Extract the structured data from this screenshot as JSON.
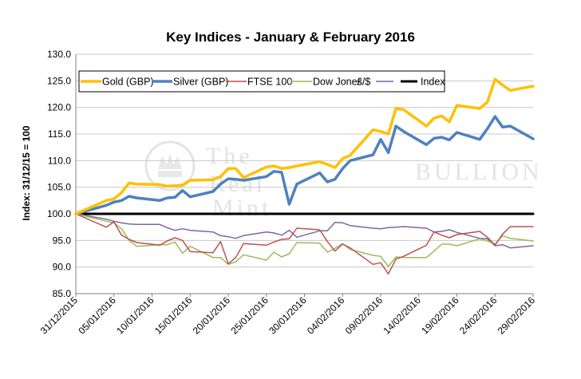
{
  "chart_data": {
    "type": "line",
    "title": "Key Indices - January & February 2016",
    "xlabel": "",
    "ylabel": "Index: 31/12/15 = 100",
    "ylim": [
      85,
      130
    ],
    "y_ticks": [
      "85.0",
      "90.0",
      "95.0",
      "100.0",
      "105.0",
      "110.0",
      "115.0",
      "120.0",
      "125.0",
      "130.0"
    ],
    "x_tick_labels": [
      "31/12/2015",
      "05/01/2016",
      "10/01/2016",
      "15/01/2016",
      "20/01/2016",
      "25/01/2016",
      "30/01/2016",
      "04/02/2016",
      "09/02/2016",
      "14/02/2016",
      "19/02/2016",
      "24/02/2016",
      "29/02/2016"
    ],
    "x_tick_days": [
      0,
      5,
      10,
      15,
      20,
      25,
      30,
      35,
      40,
      45,
      50,
      55,
      60
    ],
    "x_range_days": [
      0,
      60
    ],
    "grid": "horizontal",
    "legend_position": "top-left",
    "x": [
      0,
      4,
      5,
      6,
      7,
      8,
      11,
      12,
      13,
      14,
      15,
      18,
      19,
      20,
      21,
      22,
      25,
      26,
      27,
      28,
      29,
      32,
      33,
      34,
      35,
      36,
      39,
      40,
      41,
      42,
      43,
      46,
      47,
      48,
      49,
      50,
      53,
      54,
      55,
      56,
      57,
      60
    ],
    "series": [
      {
        "name": "Gold (GBP)",
        "color": "#FFC000",
        "values": [
          100,
          102.5,
          102.8,
          104.0,
          105.8,
          105.6,
          105.5,
          105.2,
          105.3,
          105.4,
          106.3,
          106.4,
          107.0,
          108.5,
          108.5,
          106.8,
          108.8,
          109.0,
          108.5,
          108.7,
          109.0,
          109.8,
          109.3,
          108.7,
          110.4,
          111.0,
          115.8,
          115.5,
          115.0,
          119.8,
          119.6,
          116.5,
          118.0,
          118.4,
          117.3,
          120.4,
          119.8,
          121.0,
          125.3,
          124.2,
          123.2,
          124.0
        ]
      },
      {
        "name": "Silver (GBP)",
        "color": "#4F81BD",
        "values": [
          100,
          101.6,
          102.2,
          102.5,
          103.3,
          103.0,
          102.5,
          103.0,
          103.1,
          104.4,
          103.2,
          104.2,
          105.6,
          106.6,
          106.5,
          106.3,
          107.0,
          108.0,
          107.8,
          101.8,
          105.6,
          107.7,
          106.0,
          106.5,
          108.5,
          110.0,
          111.1,
          114.0,
          111.5,
          116.5,
          115.5,
          113.0,
          114.2,
          114.4,
          113.9,
          115.3,
          114.0,
          116.0,
          118.3,
          116.3,
          116.5,
          114.1
        ]
      },
      {
        "name": "FTSE 100",
        "color": "#C0504D",
        "values": [
          100,
          97.5,
          98.5,
          96.0,
          95.2,
          94.6,
          94.1,
          94.9,
          95.5,
          95.0,
          92.9,
          92.7,
          94.8,
          90.6,
          91.8,
          94.4,
          94.1,
          94.7,
          95.2,
          95.3,
          97.3,
          97.0,
          94.8,
          93.0,
          94.3,
          93.6,
          90.5,
          90.8,
          88.7,
          91.5,
          92.0,
          94.1,
          96.6,
          96.0,
          95.5,
          96.1,
          96.7,
          95.6,
          94.1,
          96.2,
          97.6,
          97.6
        ]
      },
      {
        "name": "Dow Jones",
        "color": "#9BBB59",
        "values": [
          100,
          98.6,
          98.3,
          97.2,
          95.0,
          93.9,
          94.2,
          94.2,
          94.7,
          92.6,
          93.9,
          91.8,
          91.8,
          90.5,
          91.0,
          92.3,
          91.3,
          92.8,
          91.9,
          92.5,
          94.6,
          94.5,
          92.8,
          93.5,
          94.4,
          93.3,
          92.2,
          92.0,
          90.1,
          91.9,
          91.8,
          91.8,
          93.0,
          94.3,
          94.3,
          94.0,
          95.3,
          94.9,
          94.3,
          95.9,
          95.4,
          94.9
        ]
      },
      {
        "name": "£/$",
        "color": "#8064A2",
        "values": [
          100,
          99.0,
          98.6,
          98.3,
          98.1,
          98.0,
          98.0,
          97.4,
          96.9,
          97.2,
          96.9,
          96.6,
          95.9,
          95.7,
          95.4,
          95.9,
          96.6,
          96.4,
          96.0,
          96.9,
          95.6,
          96.8,
          96.8,
          98.4,
          98.3,
          97.8,
          97.3,
          97.2,
          97.4,
          97.5,
          97.6,
          97.3,
          96.6,
          96.7,
          97.0,
          96.5,
          95.4,
          95.3,
          94.0,
          94.2,
          93.6,
          94.0
        ]
      },
      {
        "name": "Index",
        "color": "#000000",
        "values": [
          100,
          100,
          100,
          100,
          100,
          100,
          100,
          100,
          100,
          100,
          100,
          100,
          100,
          100,
          100,
          100,
          100,
          100,
          100,
          100,
          100,
          100,
          100,
          100,
          100,
          100,
          100,
          100,
          100,
          100,
          100,
          100,
          100,
          100,
          100,
          100,
          100,
          100,
          100,
          100,
          100,
          100
        ]
      }
    ]
  },
  "watermark": {
    "line1": "The",
    "line2": "Real",
    "line3": "Mint",
    "right": "BULLION"
  }
}
